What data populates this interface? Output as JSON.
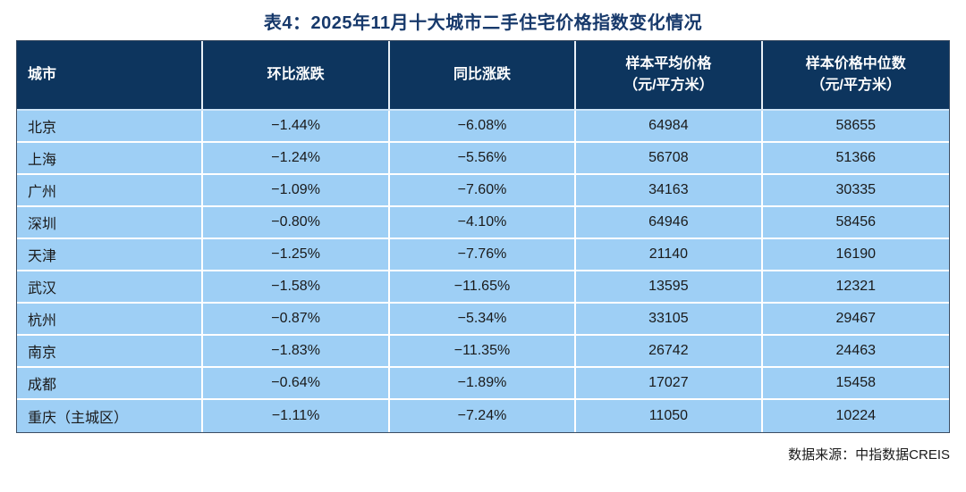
{
  "title": "表4：2025年11月十大城市二手住宅价格指数变化情况",
  "source_note": "数据来源：中指数据CREIS",
  "colors": {
    "header_bg": "#0D355E",
    "row_bg": "#9ECFF5",
    "title_text": "#17396B",
    "header_text": "#FFFFFF",
    "cell_text": "#1A1A1A",
    "grid_line": "#FFFFFF",
    "table_border": "#3B4D63"
  },
  "chart_data": {
    "type": "table",
    "title": "表4：2025年11月十大城市二手住宅价格指数变化情况",
    "columns": [
      {
        "label": "城市",
        "sublabel": ""
      },
      {
        "label": "环比涨跌",
        "sublabel": ""
      },
      {
        "label": "同比涨跌",
        "sublabel": ""
      },
      {
        "label": "样本平均价格",
        "sublabel": "（元/平方米）"
      },
      {
        "label": "样本价格中位数",
        "sublabel": "（元/平方米）"
      }
    ],
    "rows": [
      {
        "city": "北京",
        "mom": "−1.44%",
        "yoy": "−6.08%",
        "avg_price": "64984",
        "median_price": "58655"
      },
      {
        "city": "上海",
        "mom": "−1.24%",
        "yoy": "−5.56%",
        "avg_price": "56708",
        "median_price": "51366"
      },
      {
        "city": "广州",
        "mom": "−1.09%",
        "yoy": "−7.60%",
        "avg_price": "34163",
        "median_price": "30335"
      },
      {
        "city": "深圳",
        "mom": "−0.80%",
        "yoy": "−4.10%",
        "avg_price": "64946",
        "median_price": "58456"
      },
      {
        "city": "天津",
        "mom": "−1.25%",
        "yoy": "−7.76%",
        "avg_price": "21140",
        "median_price": "16190"
      },
      {
        "city": "武汉",
        "mom": "−1.58%",
        "yoy": "−11.65%",
        "avg_price": "13595",
        "median_price": "12321"
      },
      {
        "city": "杭州",
        "mom": "−0.87%",
        "yoy": "−5.34%",
        "avg_price": "33105",
        "median_price": "29467"
      },
      {
        "city": "南京",
        "mom": "−1.83%",
        "yoy": "−11.35%",
        "avg_price": "26742",
        "median_price": "24463"
      },
      {
        "city": "成都",
        "mom": "−0.64%",
        "yoy": "−1.89%",
        "avg_price": "17027",
        "median_price": "15458"
      },
      {
        "city": "重庆（主城区）",
        "mom": "−1.11%",
        "yoy": "−7.24%",
        "avg_price": "11050",
        "median_price": "10224"
      }
    ]
  }
}
